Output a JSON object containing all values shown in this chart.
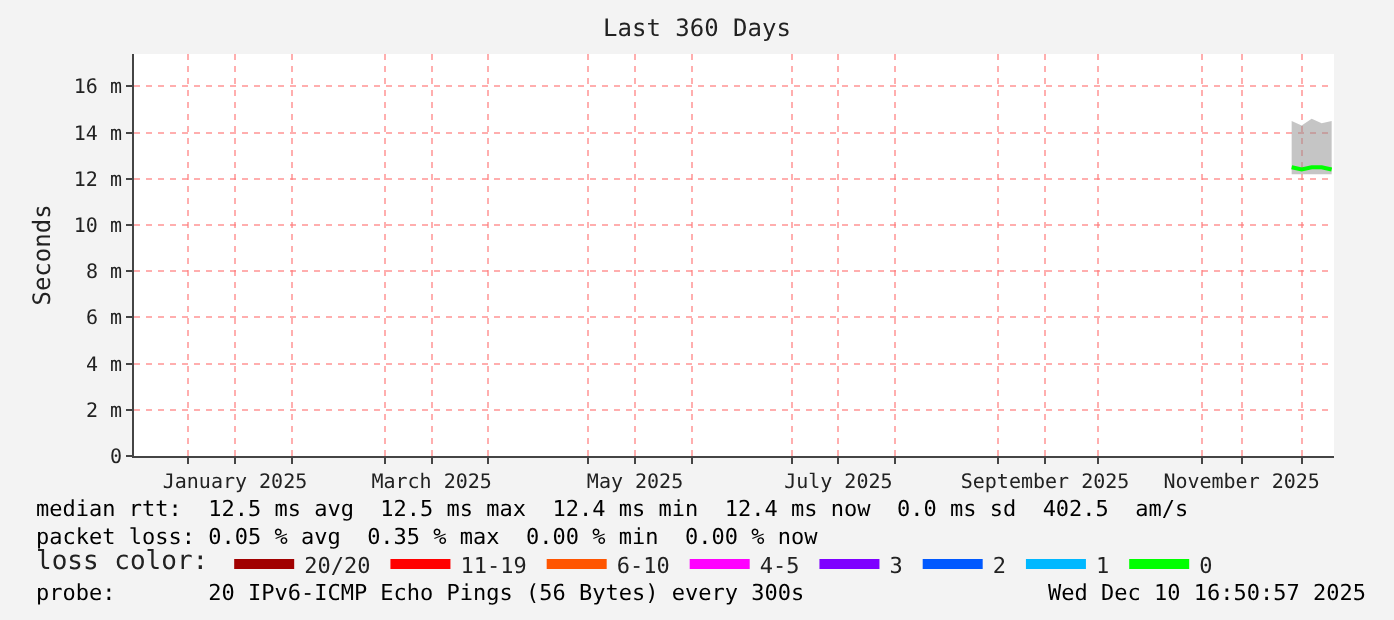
{
  "chart_data": {
    "type": "line",
    "title": "Last 360 Days",
    "ylabel": "Seconds",
    "x": [
      "2025-11-28",
      "2025-12-01",
      "2025-12-04",
      "2025-12-07",
      "2025-12-10"
    ],
    "xlim": [
      "2024-12-15T16:50",
      "2025-12-10T16:50"
    ],
    "xticks": [
      {
        "value": "2025-01-01",
        "label": null
      },
      {
        "value": "2025-01-15",
        "label": "January 2025"
      },
      {
        "value": "2025-02-01",
        "label": null
      },
      {
        "value": "2025-03-01",
        "label": null
      },
      {
        "value": "2025-03-15",
        "label": "March 2025"
      },
      {
        "value": "2025-04-01",
        "label": null
      },
      {
        "value": "2025-05-01",
        "label": null
      },
      {
        "value": "2025-05-15",
        "label": "May 2025"
      },
      {
        "value": "2025-06-01",
        "label": null
      },
      {
        "value": "2025-07-01",
        "label": null
      },
      {
        "value": "2025-07-15",
        "label": "July 2025"
      },
      {
        "value": "2025-08-01",
        "label": null
      },
      {
        "value": "2025-09-01",
        "label": null
      },
      {
        "value": "2025-09-15",
        "label": "September 2025"
      },
      {
        "value": "2025-10-01",
        "label": null
      },
      {
        "value": "2025-11-01",
        "label": null
      },
      {
        "value": "2025-11-13",
        "label": "November 2025"
      },
      {
        "value": "2025-12-01",
        "label": null
      }
    ],
    "ylim": [
      0,
      17.4
    ],
    "yticks": [
      0,
      {
        "value": 2,
        "label": "2 m"
      },
      {
        "value": 4,
        "label": "4 m"
      },
      {
        "value": 6,
        "label": "6 m"
      },
      {
        "value": 8,
        "label": "8 m"
      },
      {
        "value": 10,
        "label": "10 m"
      },
      {
        "value": 12,
        "label": "12 m"
      },
      {
        "value": 14,
        "label": "14 m"
      },
      {
        "value": 16,
        "label": "16 m"
      }
    ],
    "grid": true,
    "legend": "bottom",
    "legend_title": "loss color:",
    "series": [
      {
        "name": "0",
        "color": "#00ff00",
        "values": [
          12.5,
          12.4,
          12.5,
          12.5,
          12.4
        ],
        "lower": [
          12.2,
          12.2,
          12.2,
          12.2,
          12.2
        ],
        "upper": [
          14.5,
          14.3,
          14.6,
          14.4,
          14.5
        ]
      },
      {
        "name": "1",
        "color": "#00b8ff",
        "values": [
          null,
          null,
          null,
          null,
          null
        ]
      },
      {
        "name": "2",
        "color": "#0059ff",
        "values": [
          null,
          null,
          null,
          null,
          null
        ]
      },
      {
        "name": "3",
        "color": "#7e00ff",
        "values": [
          null,
          null,
          null,
          null,
          null
        ]
      },
      {
        "name": "4-5",
        "color": "#ff00ff",
        "values": [
          null,
          null,
          null,
          null,
          null
        ]
      },
      {
        "name": "6-10",
        "color": "#ff5500",
        "values": [
          null,
          null,
          null,
          null,
          null
        ]
      },
      {
        "name": "11-19",
        "color": "#ff0000",
        "values": [
          null,
          null,
          null,
          null,
          null
        ]
      },
      {
        "name": "20/20",
        "color": "#a10000",
        "values": [
          null,
          null,
          null,
          null,
          null
        ]
      }
    ],
    "annotations": [
      "median rtt:  12.5 ms avg  12.5 ms max  12.4 ms min  12.4 ms now  0.0 ms sd  402.5  am/s",
      "packet loss: 0.05 % avg  0.35 % max  0.00 % min  0.00 % now",
      "probe:       20 IPv6-ICMP Echo Pings (56 Bytes) every 300s",
      "Wed Dec 10 16:50:57 2025"
    ]
  }
}
